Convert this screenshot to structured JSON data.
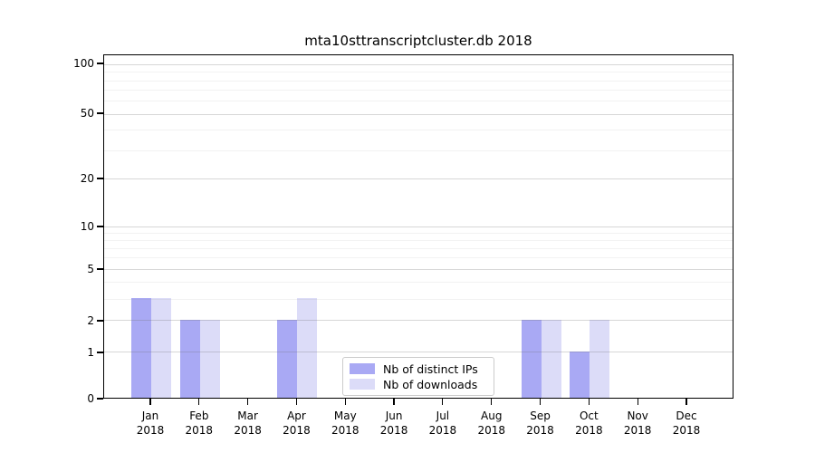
{
  "chart_data": {
    "type": "bar",
    "title": "mta10sttranscriptcluster.db 2018",
    "categories": [
      "Jan",
      "Feb",
      "Mar",
      "Apr",
      "May",
      "Jun",
      "Jul",
      "Aug",
      "Sep",
      "Oct",
      "Nov",
      "Dec"
    ],
    "category_year": "2018",
    "series": [
      {
        "name": "Nb of distinct IPs",
        "color": "#a9a9f4",
        "values": [
          3,
          2,
          0,
          2,
          0,
          0,
          0,
          0,
          2,
          1,
          0,
          0
        ]
      },
      {
        "name": "Nb of downloads",
        "color": "#dcdcf8",
        "values": [
          3,
          2,
          0,
          3,
          0,
          0,
          0,
          0,
          2,
          2,
          0,
          0
        ]
      }
    ],
    "yscale": "symlog",
    "ylim": [
      0,
      100
    ],
    "yticks": [
      0,
      1,
      2,
      5,
      10,
      20,
      50,
      100
    ],
    "minor_gridlines": [
      3,
      4,
      6,
      7,
      8,
      9,
      30,
      40,
      60,
      70,
      80,
      90
    ],
    "grid": true,
    "legend_position": "lower center",
    "scale_anchors": [
      [
        0,
        1.0
      ],
      [
        1,
        0.8658
      ],
      [
        2,
        0.7737
      ],
      [
        3,
        0.7105
      ],
      [
        5,
        0.6237
      ],
      [
        10,
        0.5
      ],
      [
        20,
        0.3605
      ],
      [
        50,
        0.1711
      ],
      [
        100,
        0.0263
      ]
    ]
  }
}
